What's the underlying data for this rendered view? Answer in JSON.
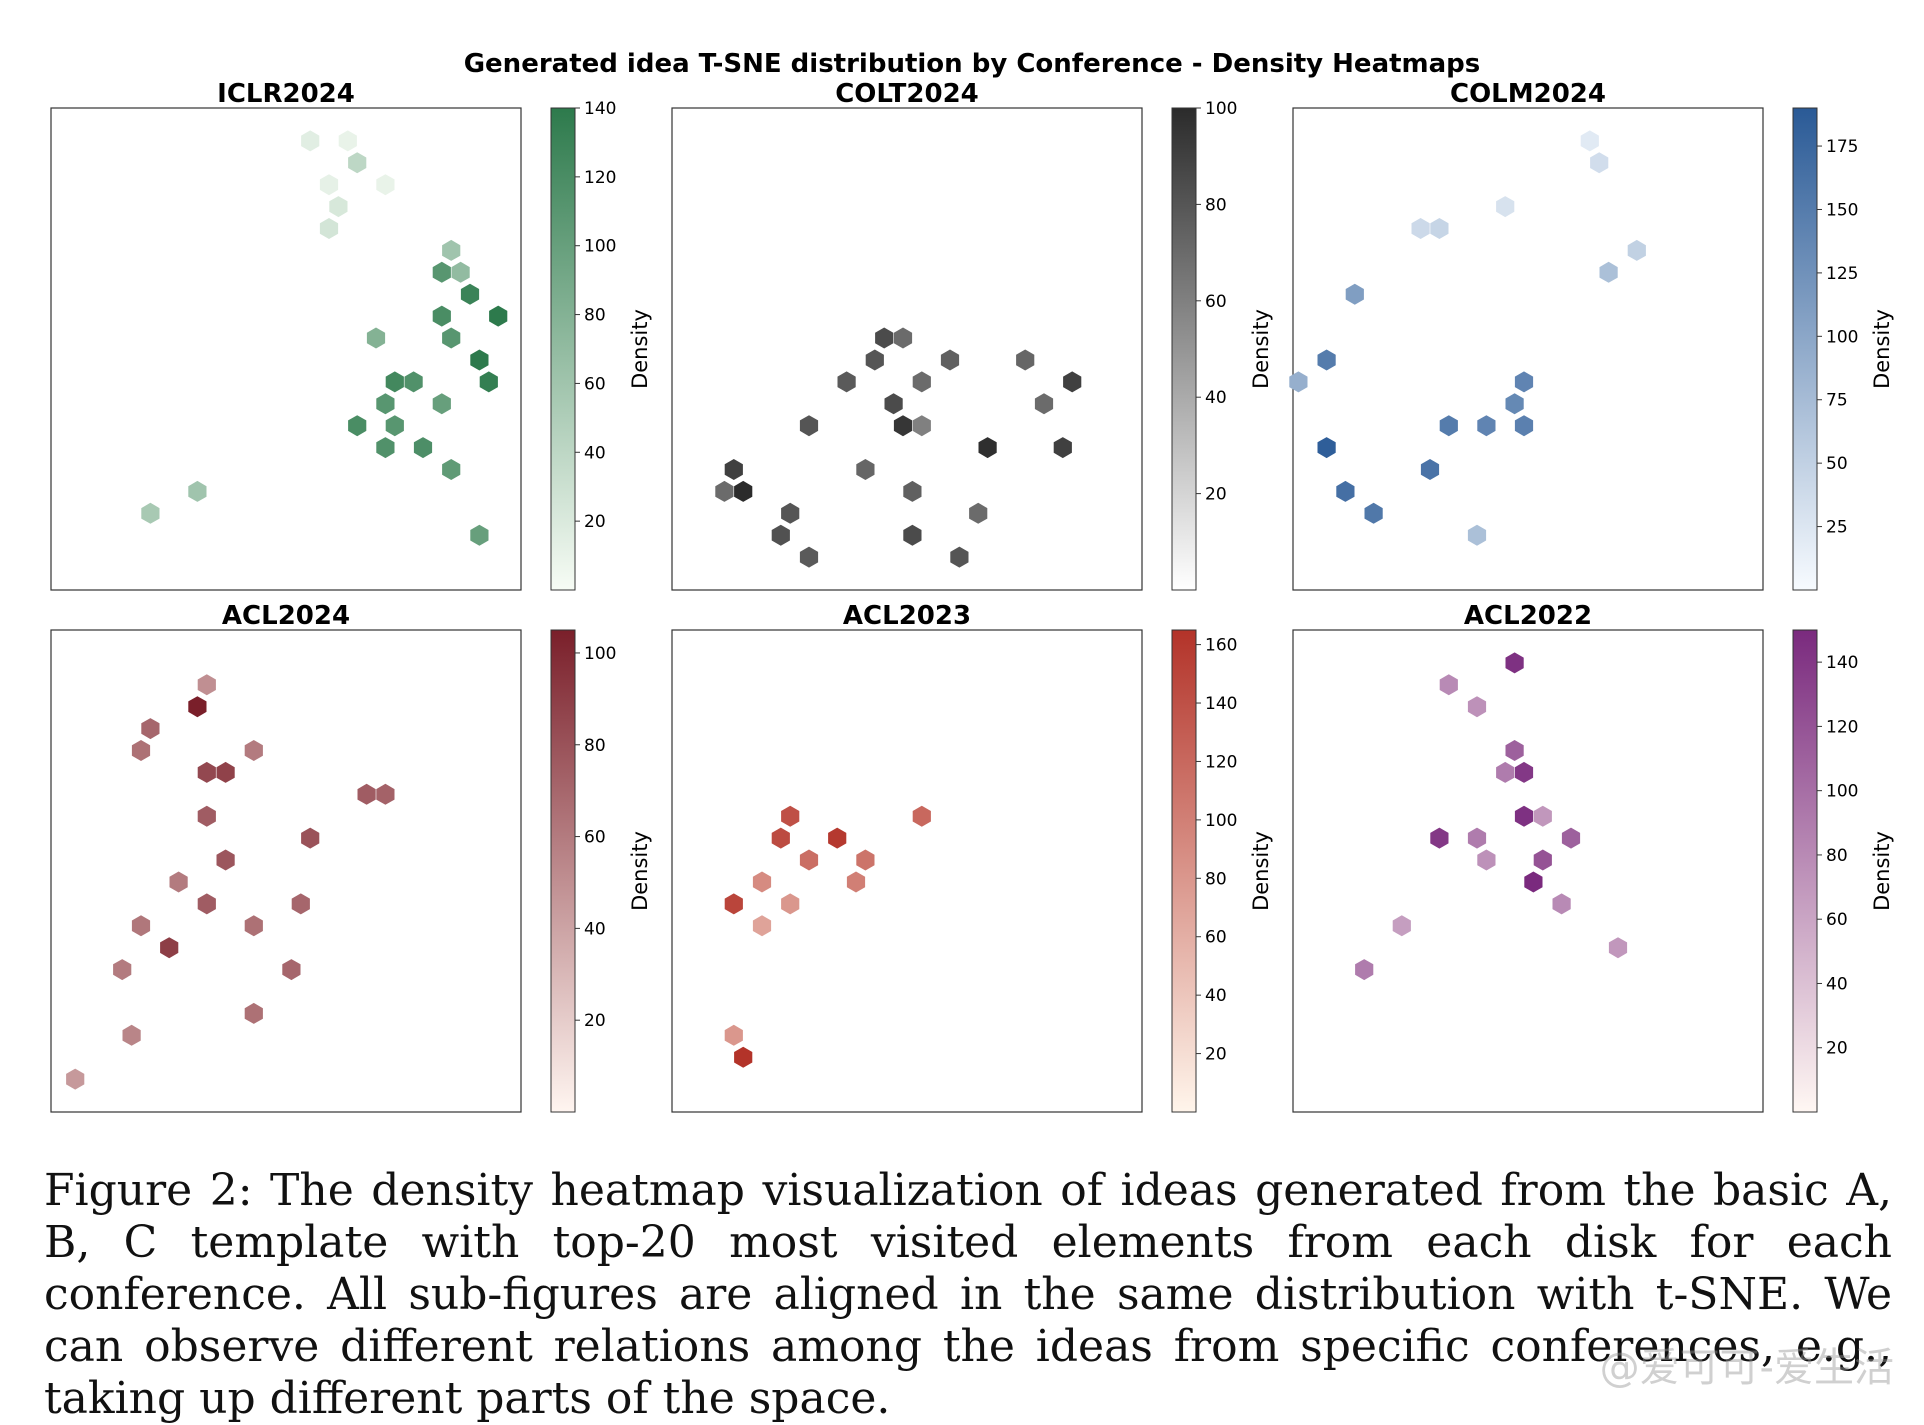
{
  "figure": {
    "title": "Generated idea T-SNE distribution by Conference - Density Heatmaps",
    "colorbar_label": "Density"
  },
  "chart_data": [
    {
      "type": "heatmap",
      "title": "ICLR2024",
      "colormap": "Greens",
      "colors": [
        "#f7fcf5",
        "#2d7a4c"
      ],
      "vmax": 140,
      "colorbar_ticks": [
        20,
        40,
        60,
        80,
        100,
        120,
        140
      ],
      "cells": [
        {
          "row": 1,
          "col": 13,
          "v": 15
        },
        {
          "row": 1,
          "col": 15,
          "v": 10
        },
        {
          "row": 2,
          "col": 16,
          "v": 40
        },
        {
          "row": 3,
          "col": 14,
          "v": 12
        },
        {
          "row": 3,
          "col": 17,
          "v": 10
        },
        {
          "row": 4,
          "col": 15,
          "v": 22
        },
        {
          "row": 5,
          "col": 14,
          "v": 25
        },
        {
          "row": 6,
          "col": 21,
          "v": 60
        },
        {
          "row": 7,
          "col": 20,
          "v": 110
        },
        {
          "row": 7,
          "col": 21,
          "v": 70
        },
        {
          "row": 8,
          "col": 22,
          "v": 130
        },
        {
          "row": 9,
          "col": 23,
          "v": 140
        },
        {
          "row": 9,
          "col": 20,
          "v": 120
        },
        {
          "row": 10,
          "col": 17,
          "v": 80
        },
        {
          "row": 10,
          "col": 21,
          "v": 110
        },
        {
          "row": 11,
          "col": 22,
          "v": 140
        },
        {
          "row": 12,
          "col": 18,
          "v": 125
        },
        {
          "row": 12,
          "col": 19,
          "v": 115
        },
        {
          "row": 12,
          "col": 23,
          "v": 135
        },
        {
          "row": 13,
          "col": 17,
          "v": 110
        },
        {
          "row": 13,
          "col": 20,
          "v": 100
        },
        {
          "row": 14,
          "col": 16,
          "v": 120
        },
        {
          "row": 14,
          "col": 18,
          "v": 110
        },
        {
          "row": 15,
          "col": 17,
          "v": 115
        },
        {
          "row": 15,
          "col": 19,
          "v": 118
        },
        {
          "row": 16,
          "col": 21,
          "v": 105
        },
        {
          "row": 17,
          "col": 7,
          "v": 60
        },
        {
          "row": 18,
          "col": 5,
          "v": 55
        },
        {
          "row": 19,
          "col": 22,
          "v": 100
        }
      ]
    },
    {
      "type": "heatmap",
      "title": "COLT2024",
      "colormap": "Greys",
      "colors": [
        "#ffffff",
        "#2b2b2b"
      ],
      "vmax": 100,
      "colorbar_ticks": [
        20,
        40,
        60,
        80,
        100
      ],
      "cells": [
        {
          "row": 10,
          "col": 11,
          "v": 85
        },
        {
          "row": 10,
          "col": 12,
          "v": 70
        },
        {
          "row": 11,
          "col": 10,
          "v": 80
        },
        {
          "row": 11,
          "col": 14,
          "v": 75
        },
        {
          "row": 11,
          "col": 18,
          "v": 72
        },
        {
          "row": 12,
          "col": 9,
          "v": 78
        },
        {
          "row": 12,
          "col": 13,
          "v": 70
        },
        {
          "row": 12,
          "col": 21,
          "v": 90
        },
        {
          "row": 13,
          "col": 11,
          "v": 85
        },
        {
          "row": 13,
          "col": 19,
          "v": 70
        },
        {
          "row": 14,
          "col": 7,
          "v": 80
        },
        {
          "row": 14,
          "col": 12,
          "v": 95
        },
        {
          "row": 14,
          "col": 13,
          "v": 60
        },
        {
          "row": 15,
          "col": 16,
          "v": 98
        },
        {
          "row": 15,
          "col": 20,
          "v": 90
        },
        {
          "row": 16,
          "col": 3,
          "v": 90
        },
        {
          "row": 16,
          "col": 10,
          "v": 72
        },
        {
          "row": 17,
          "col": 2,
          "v": 70
        },
        {
          "row": 17,
          "col": 3,
          "v": 100
        },
        {
          "row": 17,
          "col": 12,
          "v": 75
        },
        {
          "row": 18,
          "col": 6,
          "v": 80
        },
        {
          "row": 18,
          "col": 16,
          "v": 70
        },
        {
          "row": 19,
          "col": 5,
          "v": 82
        },
        {
          "row": 19,
          "col": 12,
          "v": 85
        },
        {
          "row": 20,
          "col": 7,
          "v": 78
        },
        {
          "row": 20,
          "col": 15,
          "v": 80
        }
      ]
    },
    {
      "type": "heatmap",
      "title": "COLM2024",
      "colormap": "Blues",
      "colors": [
        "#f7fbff",
        "#2a5a96"
      ],
      "vmax": 190,
      "colorbar_ticks": [
        25,
        50,
        75,
        100,
        125,
        150,
        175
      ],
      "cells": [
        {
          "row": 1,
          "col": 15,
          "v": 20
        },
        {
          "row": 2,
          "col": 16,
          "v": 35
        },
        {
          "row": 4,
          "col": 11,
          "v": 30
        },
        {
          "row": 5,
          "col": 6,
          "v": 40
        },
        {
          "row": 5,
          "col": 7,
          "v": 45
        },
        {
          "row": 6,
          "col": 18,
          "v": 50
        },
        {
          "row": 7,
          "col": 16,
          "v": 70
        },
        {
          "row": 8,
          "col": 3,
          "v": 110
        },
        {
          "row": 11,
          "col": 1,
          "v": 150
        },
        {
          "row": 12,
          "col": 0,
          "v": 90
        },
        {
          "row": 12,
          "col": 12,
          "v": 140
        },
        {
          "row": 13,
          "col": 11,
          "v": 135
        },
        {
          "row": 14,
          "col": 8,
          "v": 150
        },
        {
          "row": 14,
          "col": 10,
          "v": 140
        },
        {
          "row": 14,
          "col": 12,
          "v": 145
        },
        {
          "row": 15,
          "col": 1,
          "v": 185
        },
        {
          "row": 16,
          "col": 7,
          "v": 160
        },
        {
          "row": 17,
          "col": 2,
          "v": 165
        },
        {
          "row": 18,
          "col": 4,
          "v": 155
        },
        {
          "row": 19,
          "col": 9,
          "v": 70
        }
      ]
    },
    {
      "type": "heatmap",
      "title": "ACL2024",
      "colormap": "Reds",
      "colors": [
        "#fff5f0",
        "#7a1f2a"
      ],
      "vmax": 105,
      "colorbar_ticks": [
        20,
        40,
        60,
        80,
        100
      ],
      "cells": [
        {
          "row": 2,
          "col": 8,
          "v": 50
        },
        {
          "row": 3,
          "col": 7,
          "v": 105
        },
        {
          "row": 4,
          "col": 5,
          "v": 70
        },
        {
          "row": 5,
          "col": 4,
          "v": 65
        },
        {
          "row": 5,
          "col": 10,
          "v": 60
        },
        {
          "row": 6,
          "col": 8,
          "v": 85
        },
        {
          "row": 6,
          "col": 9,
          "v": 88
        },
        {
          "row": 7,
          "col": 16,
          "v": 75
        },
        {
          "row": 7,
          "col": 17,
          "v": 72
        },
        {
          "row": 8,
          "col": 8,
          "v": 75
        },
        {
          "row": 9,
          "col": 13,
          "v": 80
        },
        {
          "row": 10,
          "col": 9,
          "v": 78
        },
        {
          "row": 11,
          "col": 6,
          "v": 60
        },
        {
          "row": 12,
          "col": 8,
          "v": 75
        },
        {
          "row": 12,
          "col": 13,
          "v": 70
        },
        {
          "row": 13,
          "col": 4,
          "v": 62
        },
        {
          "row": 13,
          "col": 10,
          "v": 65
        },
        {
          "row": 14,
          "col": 6,
          "v": 90
        },
        {
          "row": 15,
          "col": 3,
          "v": 60
        },
        {
          "row": 15,
          "col": 12,
          "v": 70
        },
        {
          "row": 17,
          "col": 10,
          "v": 65
        },
        {
          "row": 18,
          "col": 4,
          "v": 55
        },
        {
          "row": 20,
          "col": 1,
          "v": 45
        }
      ]
    },
    {
      "type": "heatmap",
      "title": "ACL2023",
      "colormap": "Oranges",
      "colors": [
        "#fff5eb",
        "#b33329"
      ],
      "vmax": 165,
      "colorbar_ticks": [
        20,
        40,
        60,
        80,
        100,
        120,
        140,
        160
      ],
      "cells": [
        {
          "row": 8,
          "col": 6,
          "v": 140
        },
        {
          "row": 8,
          "col": 13,
          "v": 120
        },
        {
          "row": 9,
          "col": 5,
          "v": 145
        },
        {
          "row": 9,
          "col": 8,
          "v": 160
        },
        {
          "row": 10,
          "col": 7,
          "v": 115
        },
        {
          "row": 10,
          "col": 10,
          "v": 110
        },
        {
          "row": 11,
          "col": 9,
          "v": 100
        },
        {
          "row": 11,
          "col": 4,
          "v": 90
        },
        {
          "row": 12,
          "col": 3,
          "v": 150
        },
        {
          "row": 12,
          "col": 6,
          "v": 80
        },
        {
          "row": 13,
          "col": 4,
          "v": 70
        },
        {
          "row": 18,
          "col": 3,
          "v": 80
        },
        {
          "row": 19,
          "col": 3,
          "v": 165
        }
      ]
    },
    {
      "type": "heatmap",
      "title": "ACL2022",
      "colormap": "RdPu",
      "colors": [
        "#fff7f3",
        "#7a2a7e"
      ],
      "vmax": 150,
      "colorbar_ticks": [
        20,
        40,
        60,
        80,
        100,
        120,
        140
      ],
      "cells": [
        {
          "row": 1,
          "col": 11,
          "v": 145
        },
        {
          "row": 2,
          "col": 8,
          "v": 80
        },
        {
          "row": 3,
          "col": 9,
          "v": 75
        },
        {
          "row": 5,
          "col": 11,
          "v": 110
        },
        {
          "row": 6,
          "col": 12,
          "v": 140
        },
        {
          "row": 6,
          "col": 11,
          "v": 90
        },
        {
          "row": 8,
          "col": 12,
          "v": 145
        },
        {
          "row": 8,
          "col": 13,
          "v": 70
        },
        {
          "row": 9,
          "col": 7,
          "v": 140
        },
        {
          "row": 9,
          "col": 9,
          "v": 90
        },
        {
          "row": 9,
          "col": 14,
          "v": 110
        },
        {
          "row": 10,
          "col": 10,
          "v": 75
        },
        {
          "row": 10,
          "col": 13,
          "v": 120
        },
        {
          "row": 11,
          "col": 12,
          "v": 150
        },
        {
          "row": 12,
          "col": 14,
          "v": 80
        },
        {
          "row": 13,
          "col": 5,
          "v": 65
        },
        {
          "row": 14,
          "col": 17,
          "v": 70
        },
        {
          "row": 15,
          "col": 3,
          "v": 90
        }
      ]
    }
  ],
  "caption": {
    "text": "Figure 2: The density heatmap visualization of ideas generated from the basic A, B, C template with top-20 most visited elements from each disk for each conference. All sub-figures are aligned in the same distribution with t-SNE. We can observe different relations among the ideas from specific conferences, e.g., taking up different parts of the space."
  },
  "watermark": {
    "text": "@爱可可-爱生活"
  }
}
